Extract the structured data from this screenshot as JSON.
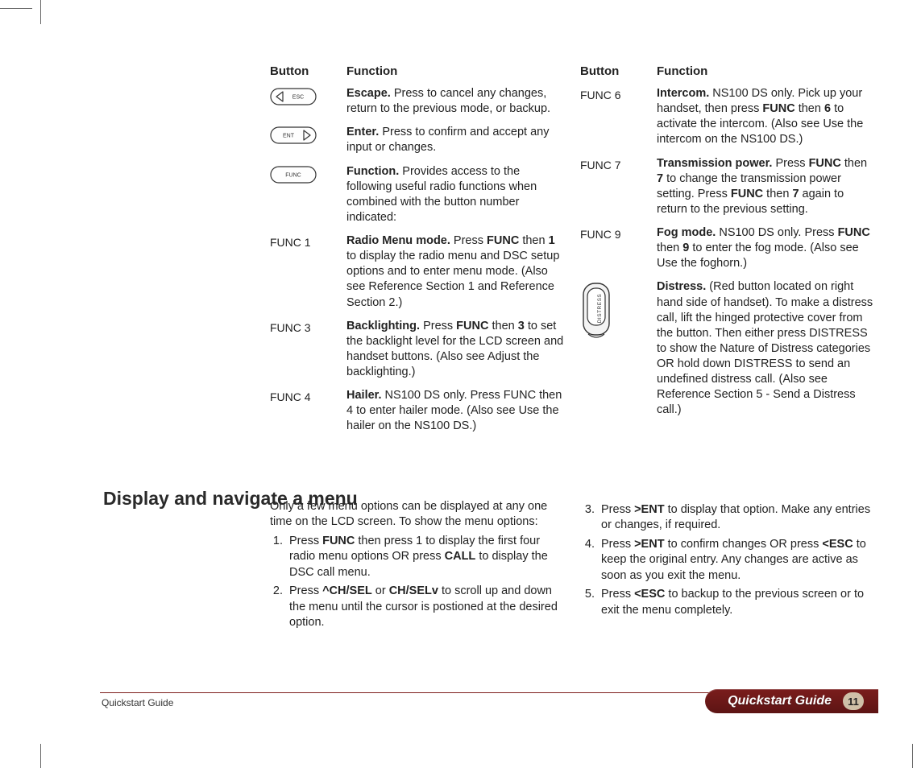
{
  "headers": {
    "button": "Button",
    "function": "Function"
  },
  "left_rows": [
    {
      "button_label": "ESC",
      "button_type": "oval-left",
      "desc": "<b>Escape.</b> Press to cancel any changes, return to the previous mode, or backup."
    },
    {
      "button_label": "ENT",
      "button_type": "oval-right",
      "desc": "<b>Enter.</b> Press to confirm and accept any input or changes."
    },
    {
      "button_label": "FUNC",
      "button_type": "oval",
      "desc": "<b>Function.</b> Provides access to the following useful radio functions when combined with the button number indicated:"
    },
    {
      "button_label": "FUNC 1",
      "button_type": "text",
      "desc": "<b>Radio Menu mode.</b> Press <b>FUNC</b> then <b>1</b> to display the radio menu and DSC setup options and to enter menu mode. (Also see Reference Section 1 and Reference Section 2.)"
    },
    {
      "button_label": "FUNC 3",
      "button_type": "text",
      "desc": "<b>Backlighting.</b> Press <b>FUNC</b> then <b>3</b> to set the backlight level for the LCD screen and handset buttons. (Also see Adjust the backlighting.)"
    },
    {
      "button_label": "FUNC 4",
      "button_type": "text",
      "desc": "<b>Hailer.</b> NS100 DS only. Press FUNC then 4 to enter hailer mode. (Also see Use the hailer on the NS100 DS.)"
    }
  ],
  "right_rows": [
    {
      "button_label": "FUNC 6",
      "button_type": "text",
      "desc": "<b>Intercom.</b> NS100 DS only. Pick up your handset, then press <b>FUNC</b> then <b>6</b> to activate the intercom. (Also see Use the intercom on the NS100 DS.)"
    },
    {
      "button_label": "FUNC 7",
      "button_type": "text",
      "desc": "<b>Transmission power.</b> Press <b>FUNC</b> then <b>7</b> to change the transmission power setting. Press <b>FUNC</b> then <b>7</b> again to return to the previous setting."
    },
    {
      "button_label": "FUNC 9",
      "button_type": "text",
      "desc": "<b>Fog mode.</b> NS100 DS only. Press <b>FUNC</b> then <b>9</b> to enter the fog mode. (Also see Use the foghorn.)"
    },
    {
      "button_label": "DISTRESS",
      "button_type": "distress",
      "desc": "<b>Distress.</b> (Red button located on right hand side of handset). To make a distress call, lift the hinged protective cover from the button. Then either press DISTRESS to show the Nature of Distress categories OR hold down DISTRESS to send an undefined distress call. (Also see Reference Section 5 - Send a Distress call.)"
    }
  ],
  "section_title": "Display and navigate a menu",
  "nav_intro": "Only a few menu options can be displayed at any one time on the LCD screen. To show the menu options:",
  "nav_left_steps": [
    "Press <b>FUNC</b> then press 1 to display the first four radio menu options OR press <b>CALL</b> to display the DSC call menu.",
    "Press <b>^CH/SEL</b> or <b>CH/SELv</b> to scroll up and down the menu until the cursor is postioned at the desired option."
  ],
  "nav_right_steps": [
    "Press <b>&gt;ENT</b> to display that option. Make any entries or changes, if required.",
    "Press <b>&gt;ENT</b> to confirm changes OR press <b>&lt;ESC</b> to keep the original entry. Any changes are active as soon as you exit the menu.",
    "Press <b>&lt;ESC</b> to backup to the previous screen or to exit the menu completely."
  ],
  "footer": {
    "left": "Quickstart Guide",
    "tab": "Quickstart Guide",
    "page": "11",
    "accent_color": "#6e1a18",
    "tab_gradient_top": "#7a1d1c",
    "tab_gradient_bottom": "#5d1414",
    "page_bg": "#cfc0a8"
  },
  "typography": {
    "body_fontsize": 14.5,
    "header_fontsize": 15,
    "title_fontsize": 23,
    "footer_left_fontsize": 12,
    "footer_tab_fontsize": 16
  },
  "colors": {
    "text": "#222222",
    "background": "#ffffff",
    "icon_stroke": "#333333"
  }
}
